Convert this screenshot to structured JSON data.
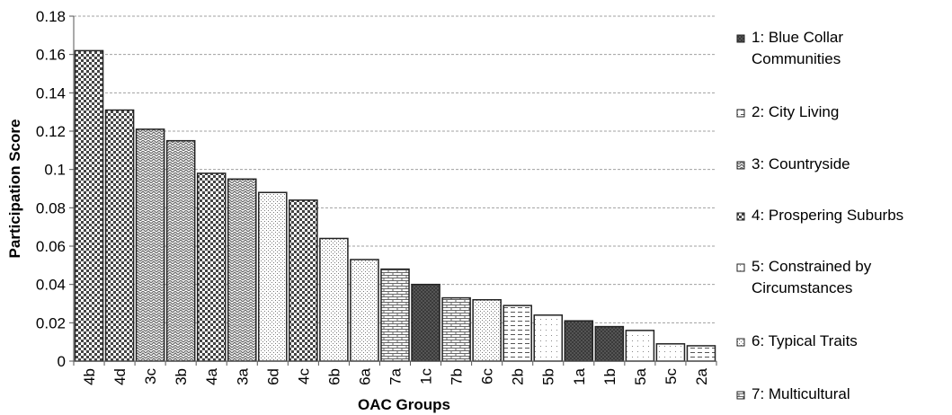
{
  "chart_data": {
    "type": "bar",
    "title": "",
    "xlabel": "OAC Groups",
    "ylabel": "Participation Score",
    "ylim": [
      0,
      0.18
    ],
    "yticks": [
      "0",
      "0.02",
      "0.04",
      "0.06",
      "0.08",
      "0.1",
      "0.12",
      "0.14",
      "0.16",
      "0.18"
    ],
    "ytick_values": [
      0,
      0.02,
      0.04,
      0.06,
      0.08,
      0.1,
      0.12,
      0.14,
      0.16,
      0.18
    ],
    "grid": true,
    "legend_position": "right",
    "categories": [
      "4b",
      "4d",
      "3c",
      "3b",
      "4a",
      "3a",
      "6d",
      "4c",
      "6b",
      "6a",
      "7a",
      "1c",
      "7b",
      "6c",
      "2b",
      "5b",
      "1a",
      "1b",
      "5a",
      "5c",
      "2a"
    ],
    "values": [
      0.162,
      0.131,
      0.121,
      0.115,
      0.098,
      0.095,
      0.088,
      0.084,
      0.064,
      0.053,
      0.048,
      0.04,
      0.033,
      0.032,
      0.029,
      0.024,
      0.021,
      0.018,
      0.016,
      0.009,
      0.008
    ],
    "groups": [
      4,
      4,
      3,
      3,
      4,
      3,
      6,
      4,
      6,
      6,
      7,
      1,
      7,
      6,
      2,
      5,
      1,
      1,
      5,
      5,
      2
    ],
    "legend": [
      {
        "group": 1,
        "lines": [
          "1: Blue Collar",
          "Communities"
        ]
      },
      {
        "group": 2,
        "lines": [
          "2: City Living"
        ]
      },
      {
        "group": 3,
        "lines": [
          "3: Countryside"
        ]
      },
      {
        "group": 4,
        "lines": [
          "4: Prospering Suburbs"
        ]
      },
      {
        "group": 5,
        "lines": [
          "5: Constrained by",
          "Circumstances"
        ]
      },
      {
        "group": 6,
        "lines": [
          "6: Typical Traits"
        ]
      },
      {
        "group": 7,
        "lines": [
          "7: Multicultural"
        ]
      }
    ]
  }
}
